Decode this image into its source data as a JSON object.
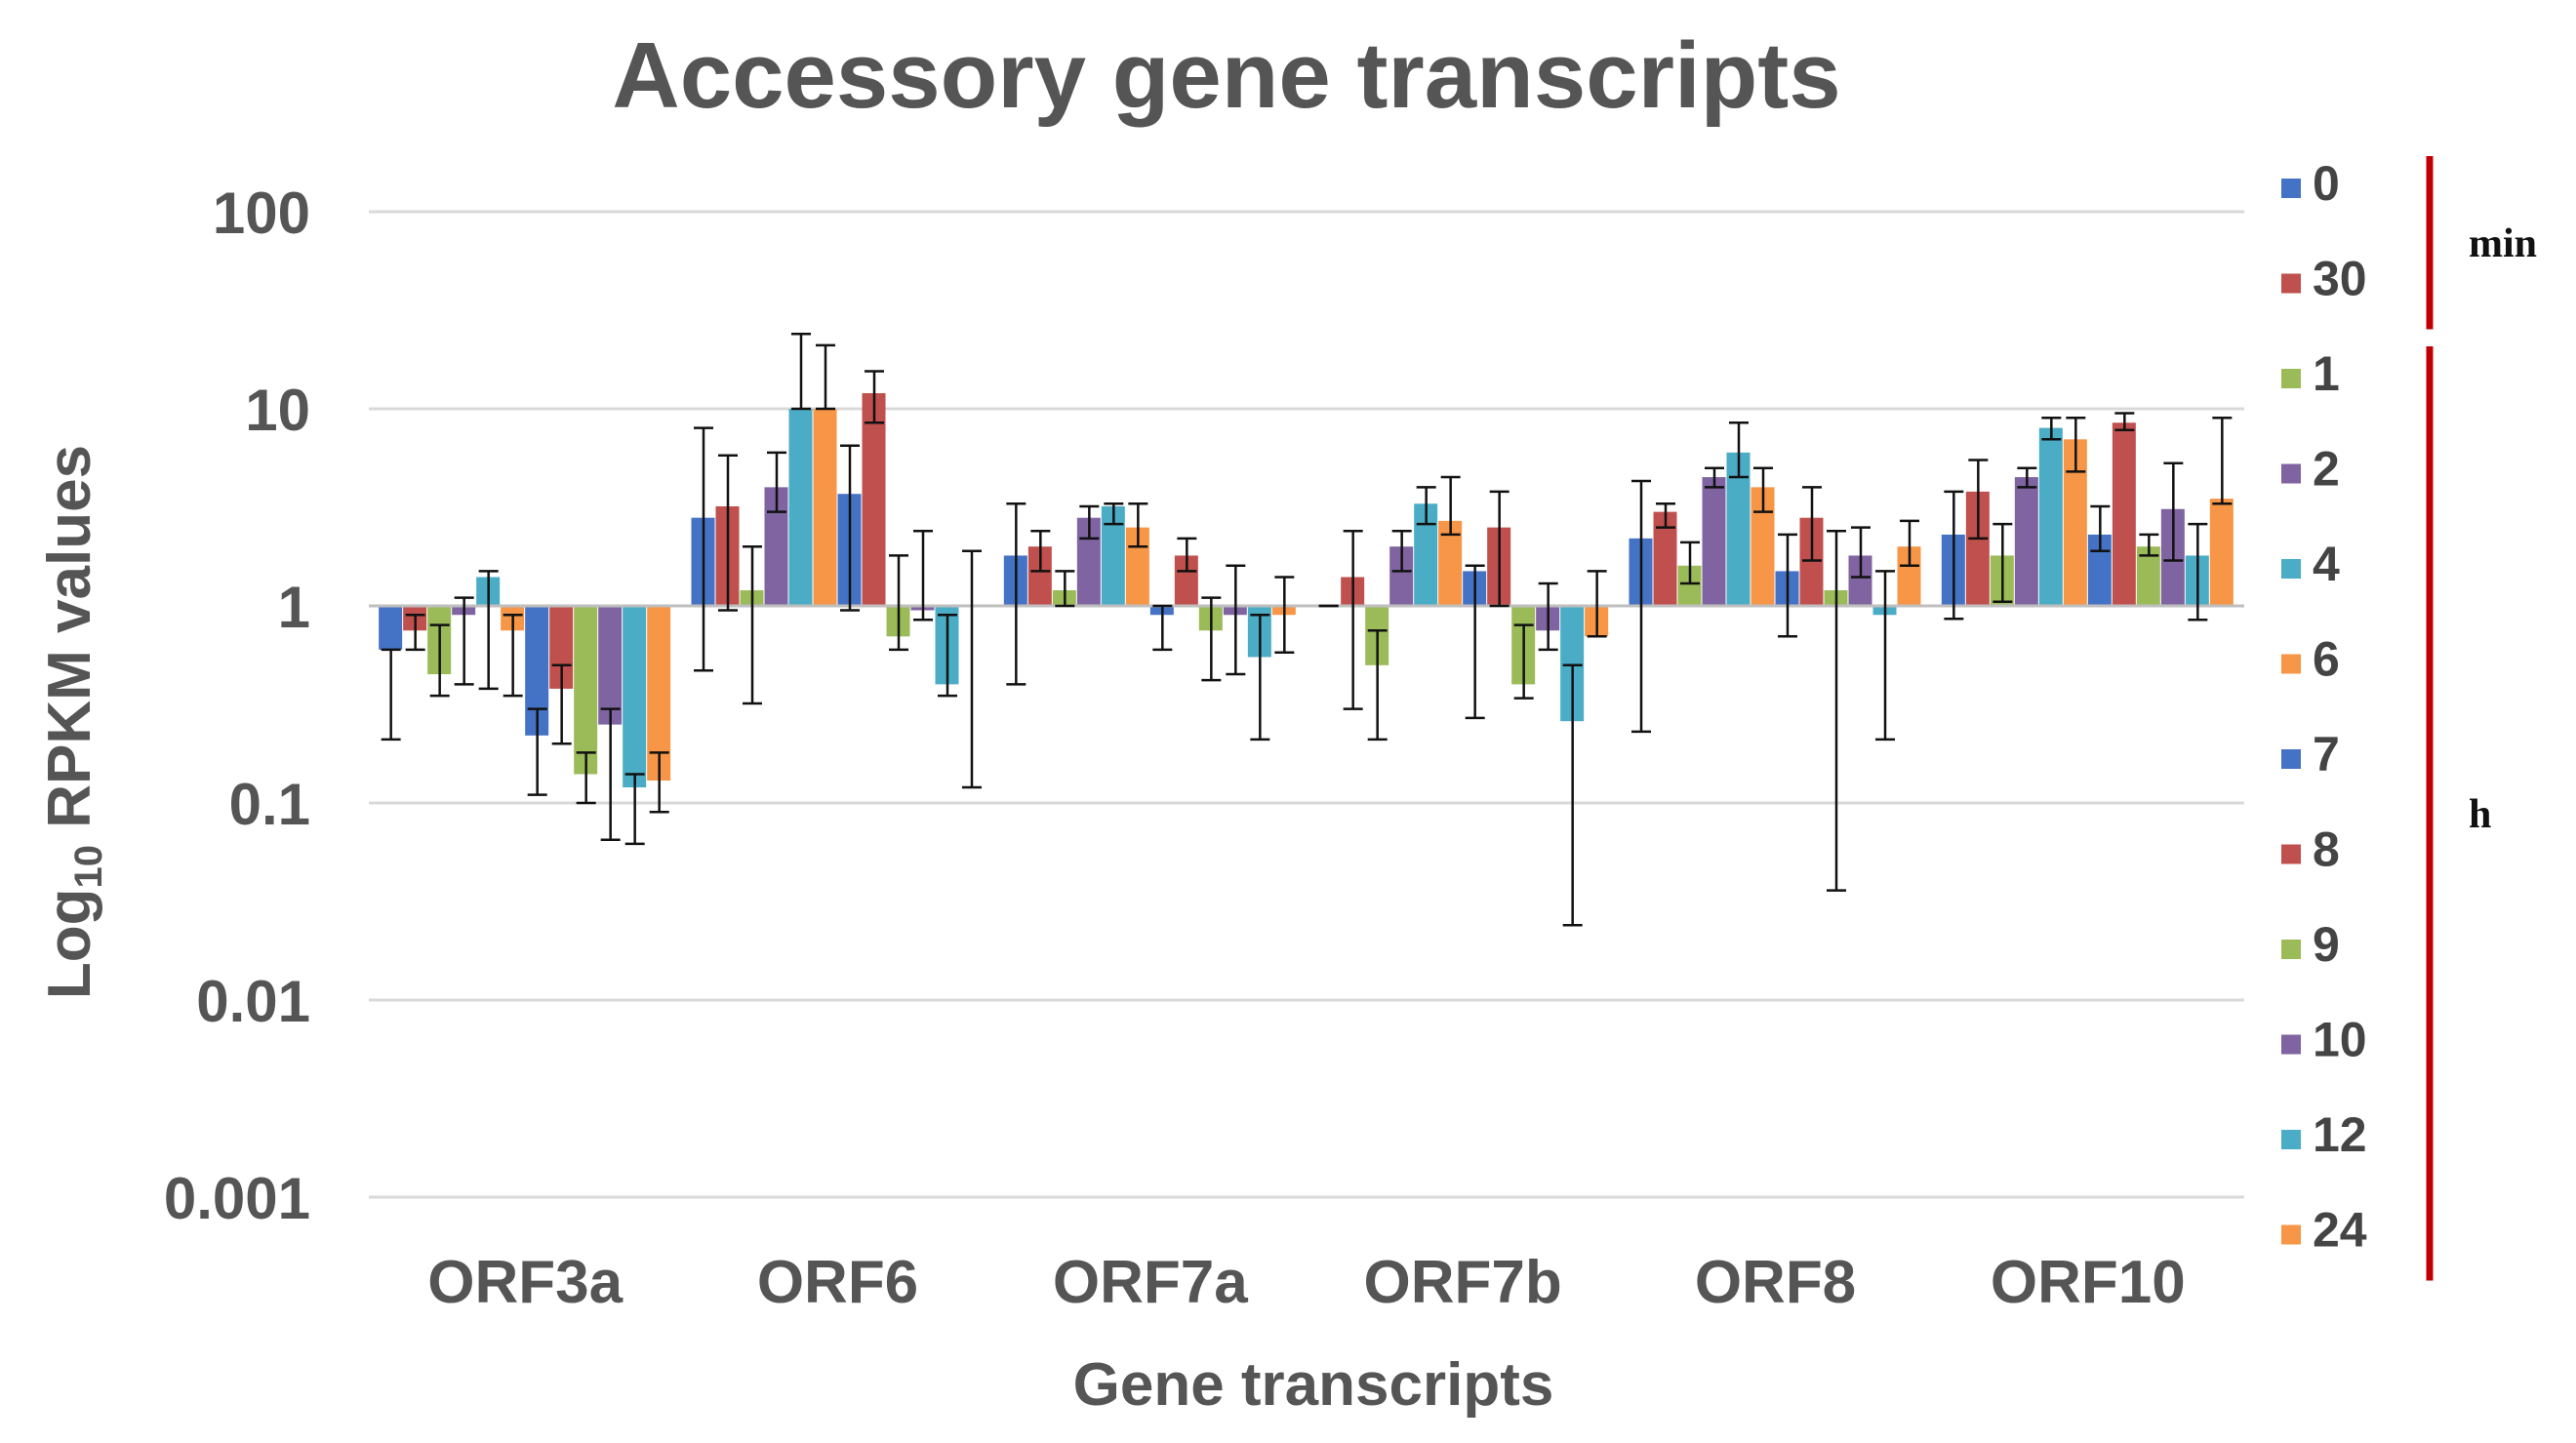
{
  "chart_data": {
    "type": "bar",
    "title": "Accessory gene transcripts",
    "xlabel": "Gene transcripts",
    "ylabel_main": "Log",
    "ylabel_sub": "10",
    "ylabel_rest": " RPKM values",
    "yscale": "log",
    "ylim": [
      0.001,
      100
    ],
    "yticks": [
      100,
      10,
      1,
      0.1,
      0.01,
      0.001
    ],
    "ytick_labels": [
      "100",
      "10",
      "1",
      "0.1",
      "0.01",
      "0.001"
    ],
    "baseline": 1,
    "categories": [
      "ORF3a",
      "ORF6",
      "ORF7a",
      "ORF7b",
      "ORF8",
      "ORF10"
    ],
    "series": [
      {
        "name": "0",
        "color": "#4472C4",
        "values": [
          0.6,
          2.8,
          1.8,
          1.0,
          2.2,
          2.3
        ],
        "err_lo": [
          0.21,
          0.47,
          0.4,
          1.0,
          0.23,
          0.86
        ],
        "err_hi": [
          0.6,
          8.0,
          3.3,
          1.0,
          4.3,
          3.8
        ]
      },
      {
        "name": "30",
        "color": "#C0504D",
        "values": [
          0.75,
          3.2,
          2.0,
          1.4,
          3.0,
          3.8
        ],
        "err_lo": [
          0.6,
          0.95,
          1.5,
          0.3,
          2.5,
          2.2
        ],
        "err_hi": [
          0.9,
          5.8,
          2.4,
          2.4,
          3.3,
          5.5
        ]
      },
      {
        "name": "1",
        "color": "#9BBB59",
        "values": [
          0.45,
          1.2,
          1.2,
          0.5,
          1.6,
          1.8
        ],
        "err_lo": [
          0.35,
          0.32,
          1.0,
          0.21,
          1.3,
          1.05
        ],
        "err_hi": [
          0.8,
          2.0,
          1.5,
          0.75,
          2.1,
          2.6
        ]
      },
      {
        "name": "2",
        "color": "#8064A2",
        "values": [
          0.9,
          4.0,
          2.8,
          2.0,
          4.5,
          4.5
        ],
        "err_lo": [
          0.4,
          3.0,
          2.2,
          1.5,
          4.0,
          4.0
        ],
        "err_hi": [
          1.1,
          6.0,
          3.2,
          2.4,
          5.0,
          5.0
        ]
      },
      {
        "name": "4",
        "color": "#4BACC6",
        "values": [
          1.4,
          10,
          3.2,
          3.3,
          6.0,
          8.0
        ],
        "err_lo": [
          0.38,
          10,
          2.6,
          2.6,
          4.5,
          7.0
        ],
        "err_hi": [
          1.5,
          24,
          3.3,
          4.0,
          8.5,
          9.0
        ]
      },
      {
        "name": "6",
        "color": "#F79646",
        "values": [
          0.75,
          10,
          2.5,
          2.7,
          4.0,
          7.0
        ],
        "err_lo": [
          0.35,
          10,
          2.0,
          2.3,
          3.0,
          4.8
        ],
        "err_hi": [
          0.9,
          21,
          3.3,
          4.5,
          5.0,
          9.0
        ]
      },
      {
        "name": "7",
        "color": "#4472C4",
        "values": [
          0.22,
          3.7,
          0.9,
          1.5,
          1.5,
          2.3
        ],
        "err_lo": [
          0.11,
          0.95,
          0.6,
          0.27,
          0.7,
          1.9
        ],
        "err_hi": [
          0.3,
          6.5,
          1.0,
          1.6,
          2.3,
          3.2
        ]
      },
      {
        "name": "8",
        "color": "#C0504D",
        "values": [
          0.38,
          12,
          1.8,
          2.5,
          2.8,
          8.5
        ],
        "err_lo": [
          0.2,
          8.5,
          1.5,
          1.0,
          1.7,
          7.8
        ],
        "err_hi": [
          0.5,
          15.5,
          2.2,
          3.8,
          4.0,
          9.5
        ]
      },
      {
        "name": "9",
        "color": "#9BBB59",
        "values": [
          0.14,
          0.7,
          0.75,
          0.4,
          1.2,
          2.0
        ],
        "err_lo": [
          0.1,
          0.6,
          0.42,
          0.34,
          0.036,
          1.8
        ],
        "err_hi": [
          0.18,
          1.8,
          1.1,
          0.8,
          2.4,
          2.3
        ]
      },
      {
        "name": "10",
        "color": "#8064A2",
        "values": [
          0.25,
          0.95,
          0.9,
          0.75,
          1.8,
          3.1
        ],
        "err_lo": [
          0.065,
          0.85,
          0.45,
          0.6,
          1.4,
          1.7
        ],
        "err_hi": [
          0.3,
          2.4,
          1.6,
          1.3,
          2.5,
          5.3
        ]
      },
      {
        "name": "12",
        "color": "#4BACC6",
        "values": [
          0.12,
          0.4,
          0.55,
          0.26,
          0.9,
          1.8
        ],
        "err_lo": [
          0.062,
          0.35,
          0.21,
          0.024,
          0.21,
          0.85
        ],
        "err_hi": [
          0.14,
          0.9,
          0.9,
          0.5,
          1.5,
          2.6
        ]
      },
      {
        "name": "24",
        "color": "#F79646",
        "values": [
          0.13,
          1.0,
          0.9,
          0.7,
          2.0,
          3.5
        ],
        "err_lo": [
          0.09,
          0.12,
          0.58,
          0.7,
          1.6,
          3.3
        ],
        "err_hi": [
          0.18,
          1.9,
          1.4,
          1.5,
          2.7,
          9.0
        ]
      }
    ],
    "legend_position": "right",
    "legend_groups": [
      {
        "label": "min",
        "members": [
          "0",
          "30"
        ],
        "color": "#C00000"
      },
      {
        "label": "h",
        "members": [
          "1",
          "2",
          "4",
          "6",
          "7",
          "8",
          "9",
          "10",
          "12",
          "24"
        ],
        "color": "#C00000"
      }
    ],
    "grid": true
  }
}
